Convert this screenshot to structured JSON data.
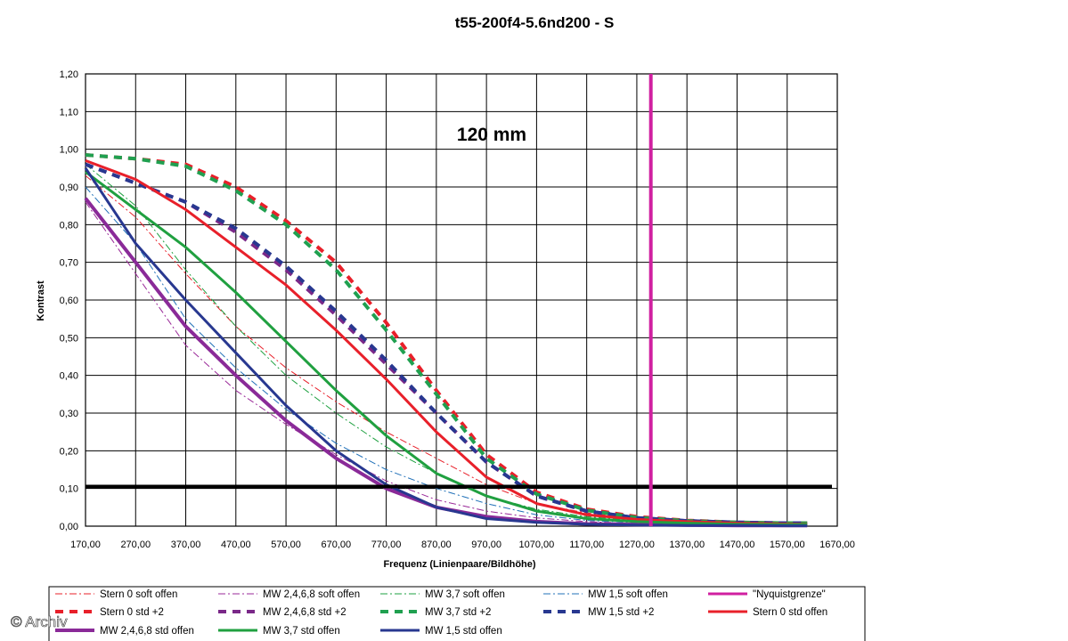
{
  "watermark": "© Archiv",
  "chart_data": {
    "type": "line",
    "title": "t55-200f4-5.6nd200 - S",
    "annotation": "120 mm",
    "xlabel": "Frequenz (Linienpaare/Bildhöhe)",
    "ylabel": "Kontrast",
    "xlim": [
      170,
      1670
    ],
    "ylim": [
      0,
      1.2
    ],
    "x_ticks": [
      "170,00",
      "270,00",
      "370,00",
      "470,00",
      "570,00",
      "670,00",
      "770,00",
      "870,00",
      "970,00",
      "1070,00",
      "1170,00",
      "1270,00",
      "1370,00",
      "1470,00",
      "1570,00",
      "1670,00"
    ],
    "y_ticks": [
      "0,00",
      "0,10",
      "0,20",
      "0,30",
      "0,40",
      "0,50",
      "0,60",
      "0,70",
      "0,80",
      "0,90",
      "1,00",
      "1,10",
      "1,20"
    ],
    "grid": true,
    "legend_position": "bottom",
    "x": [
      170,
      270,
      370,
      470,
      570,
      670,
      770,
      870,
      970,
      1070,
      1170,
      1270,
      1370,
      1470,
      1570,
      1610
    ],
    "threshold": {
      "value": 0.105,
      "color": "#000000"
    },
    "nyquist": {
      "name": "\"Nyquistgrenze\"",
      "x": 1298,
      "color": "#d020a0"
    },
    "series": [
      {
        "name": "Stern 0 soft offen",
        "color": "#e8202a",
        "style": "dashdot",
        "width": 1,
        "values": [
          0.93,
          0.82,
          0.67,
          0.53,
          0.42,
          0.33,
          0.25,
          0.18,
          0.11,
          0.06,
          0.035,
          0.02,
          0.012,
          0.008,
          0.005,
          0.004
        ]
      },
      {
        "name": "MW 2,4,6,8 soft offen",
        "color": "#9a2898",
        "style": "dashdot",
        "width": 1,
        "values": [
          0.86,
          0.67,
          0.48,
          0.36,
          0.27,
          0.19,
          0.12,
          0.07,
          0.04,
          0.022,
          0.012,
          0.007,
          0.004,
          0.003,
          0.002,
          0.002
        ]
      },
      {
        "name": "MW 3,7 soft offen",
        "color": "#1ea040",
        "style": "dashdot",
        "width": 1,
        "values": [
          0.96,
          0.85,
          0.68,
          0.53,
          0.4,
          0.3,
          0.21,
          0.14,
          0.08,
          0.045,
          0.025,
          0.015,
          0.009,
          0.006,
          0.004,
          0.004
        ]
      },
      {
        "name": "MW 1,5 soft offen",
        "color": "#2070b8",
        "style": "dashdot",
        "width": 1,
        "values": [
          0.9,
          0.75,
          0.55,
          0.42,
          0.31,
          0.22,
          0.15,
          0.1,
          0.06,
          0.03,
          0.015,
          0.009,
          0.005,
          0.004,
          0.003,
          0.003
        ]
      },
      {
        "name": "Stern 0 std +2",
        "color": "#e8202a",
        "style": "dash",
        "width": 4,
        "values": [
          0.985,
          0.975,
          0.96,
          0.9,
          0.81,
          0.7,
          0.54,
          0.36,
          0.19,
          0.09,
          0.045,
          0.025,
          0.015,
          0.01,
          0.008,
          0.008
        ]
      },
      {
        "name": "MW 2,4,6,8 std +2",
        "color": "#7a2888",
        "style": "dash",
        "width": 4,
        "values": [
          0.96,
          0.91,
          0.86,
          0.78,
          0.68,
          0.56,
          0.43,
          0.3,
          0.17,
          0.08,
          0.04,
          0.022,
          0.014,
          0.01,
          0.008,
          0.008
        ]
      },
      {
        "name": "MW 3,7 std +2",
        "color": "#20a050",
        "style": "dash",
        "width": 4,
        "values": [
          0.985,
          0.975,
          0.955,
          0.89,
          0.8,
          0.68,
          0.52,
          0.35,
          0.18,
          0.085,
          0.042,
          0.023,
          0.014,
          0.01,
          0.008,
          0.008
        ]
      },
      {
        "name": "MW 1,5 std +2",
        "color": "#283890",
        "style": "dash",
        "width": 4,
        "values": [
          0.96,
          0.91,
          0.86,
          0.79,
          0.69,
          0.57,
          0.44,
          0.3,
          0.17,
          0.08,
          0.04,
          0.022,
          0.014,
          0.01,
          0.008,
          0.008
        ]
      },
      {
        "name": "Stern 0 std offen",
        "color": "#e8202a",
        "style": "solid",
        "width": 3,
        "values": [
          0.97,
          0.92,
          0.84,
          0.74,
          0.64,
          0.52,
          0.39,
          0.25,
          0.13,
          0.06,
          0.03,
          0.018,
          0.012,
          0.008,
          0.006,
          0.005
        ]
      },
      {
        "name": "MW 2,4,6,8 std offen",
        "color": "#8a2a98",
        "style": "solid",
        "width": 4,
        "values": [
          0.87,
          0.7,
          0.53,
          0.4,
          0.28,
          0.18,
          0.1,
          0.05,
          0.025,
          0.012,
          0.006,
          0.004,
          0.003,
          0.002,
          0.002,
          0.002
        ]
      },
      {
        "name": "MW 3,7 std offen",
        "color": "#20a040",
        "style": "solid",
        "width": 3,
        "values": [
          0.94,
          0.84,
          0.74,
          0.62,
          0.49,
          0.36,
          0.24,
          0.14,
          0.08,
          0.04,
          0.02,
          0.012,
          0.008,
          0.005,
          0.004,
          0.004
        ]
      },
      {
        "name": "MW 1,5 std offen",
        "color": "#283890",
        "style": "solid",
        "width": 3,
        "values": [
          0.95,
          0.75,
          0.6,
          0.46,
          0.32,
          0.2,
          0.11,
          0.05,
          0.02,
          0.01,
          0.005,
          0.003,
          0.002,
          0.002,
          0.001,
          0.001
        ]
      }
    ]
  }
}
